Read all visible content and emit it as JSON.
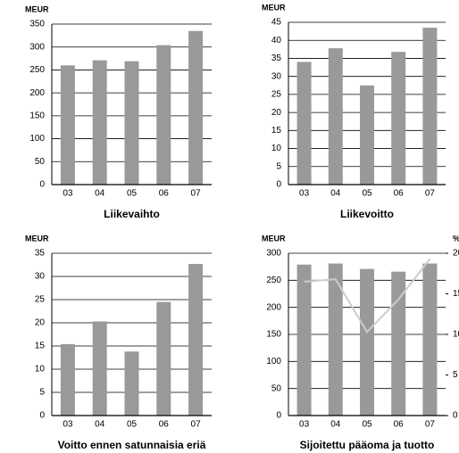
{
  "chart_data": [
    {
      "type": "bar",
      "title": "Liikevaihto",
      "y_label": "MEUR",
      "categories": [
        "03",
        "04",
        "05",
        "06",
        "07"
      ],
      "values": [
        260,
        271,
        269,
        304,
        335
      ],
      "color": "#999999",
      "ylim": [
        0,
        350
      ],
      "yticks": [
        0,
        50,
        100,
        150,
        200,
        250,
        300,
        350
      ],
      "grid": true
    },
    {
      "type": "bar",
      "title": "Liikevoitto",
      "y_label": "MEUR",
      "categories": [
        "03",
        "04",
        "05",
        "06",
        "07"
      ],
      "values": [
        34,
        37.8,
        27.5,
        36.8,
        43.5
      ],
      "color": "#999999",
      "ylim": [
        0,
        45
      ],
      "yticks": [
        0,
        5,
        10,
        15,
        20,
        25,
        30,
        35,
        40,
        45
      ],
      "grid": true
    },
    {
      "type": "bar",
      "title": "Voitto ennen satunnaisia eriä",
      "y_label": "MEUR",
      "categories": [
        "03",
        "04",
        "05",
        "06",
        "07"
      ],
      "values": [
        15.4,
        20.3,
        13.8,
        24.5,
        32.7
      ],
      "color": "#999999",
      "ylim": [
        0,
        35
      ],
      "yticks": [
        0,
        5,
        10,
        15,
        20,
        25,
        30,
        35
      ],
      "grid": true
    },
    {
      "type": "bar_line",
      "title": "Sijoitettu pääoma ja tuotto",
      "y_label": "MEUR",
      "y2_label": "%",
      "categories": [
        "03",
        "04",
        "05",
        "06",
        "07"
      ],
      "series": [
        {
          "color": "#999999",
          "values": [
            279,
            281,
            271,
            266,
            281
          ]
        },
        {
          "color": "#cccccc",
          "values": [
            16.5,
            16.8,
            10.3,
            14.3,
            19.3
          ],
          "axis": "y2"
        }
      ],
      "ylim": [
        0,
        300
      ],
      "yticks": [
        0,
        50,
        100,
        150,
        200,
        250,
        300
      ],
      "y2lim": [
        0,
        20
      ],
      "y2ticks": [
        0,
        5,
        10,
        15,
        20
      ],
      "grid": true
    }
  ]
}
